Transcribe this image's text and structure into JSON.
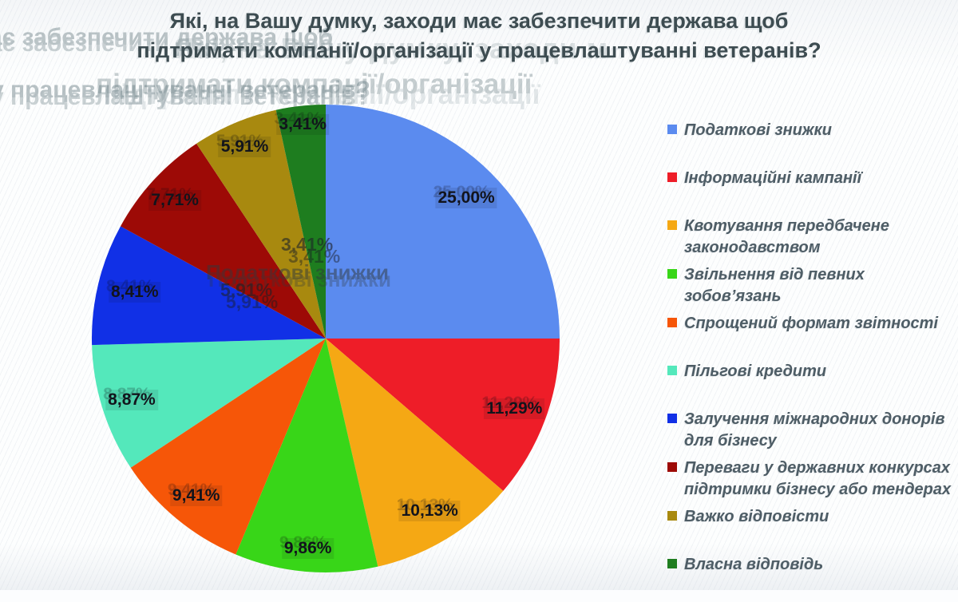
{
  "title": {
    "line1": "Які, на Вашу думку, заходи має забезпечити держава щоб",
    "line2": "підтримати компанії/організації у працевлаштуванні ветеранів?"
  },
  "ghost": {
    "echo_top_left_1": "ає забезпечити держава щоб",
    "echo_title_1": "Які, на Вашу думку, заходи м",
    "echo_title_2": "підтримати компанії/організації",
    "echo_top_left_2": "у працевлаштуванні ветеранів?",
    "echo_center_value_1": "3,41%",
    "echo_center_text": "Податкові знижки",
    "echo_center_value_2": "5,91%"
  },
  "chart_data": {
    "type": "pie",
    "title": "Які, на Вашу думку, заходи має забезпечити держава щоб підтримати компанії/організації у працевлаштуванні ветеранів?",
    "unit": "%",
    "decimal_separator": ",",
    "start_angle_deg": 0,
    "direction": "clockwise",
    "legend_position": "right",
    "slices": [
      {
        "label": "Податкові знижки",
        "value": 25.0,
        "display": "25,00%",
        "color": "#5b8bef"
      },
      {
        "label": "Інформаційні кампанії",
        "value": 11.29,
        "display": "11,29%",
        "color": "#ee1d28"
      },
      {
        "label": "Квотування передбачене законодавством",
        "value": 10.13,
        "display": "10,13%",
        "color": "#f5a814"
      },
      {
        "label": "Звільнення від певних зобов’язань",
        "value": 9.86,
        "display": "9,86%",
        "color": "#38d618"
      },
      {
        "label": "Спрощений формат звітності",
        "value": 9.41,
        "display": "9,41%",
        "color": "#f65608"
      },
      {
        "label": "Пільгові кредити",
        "value": 8.87,
        "display": "8,87%",
        "color": "#54e8bb"
      },
      {
        "label": "Залучення міжнародних донорів для бізнесу",
        "value": 8.41,
        "display": "8,41%",
        "color": "#1130e6"
      },
      {
        "label": "Переваги у державних конкурсах підтримки бізнесу або тендерах",
        "value": 7.71,
        "display": "7,71%",
        "color": "#9d0a06"
      },
      {
        "label": "Важко відповісти",
        "value": 5.91,
        "display": "5,91%",
        "color": "#a8890f"
      },
      {
        "label": "Власна відповідь",
        "value": 3.41,
        "display": "3,41%",
        "color": "#1e7d1f"
      }
    ]
  }
}
